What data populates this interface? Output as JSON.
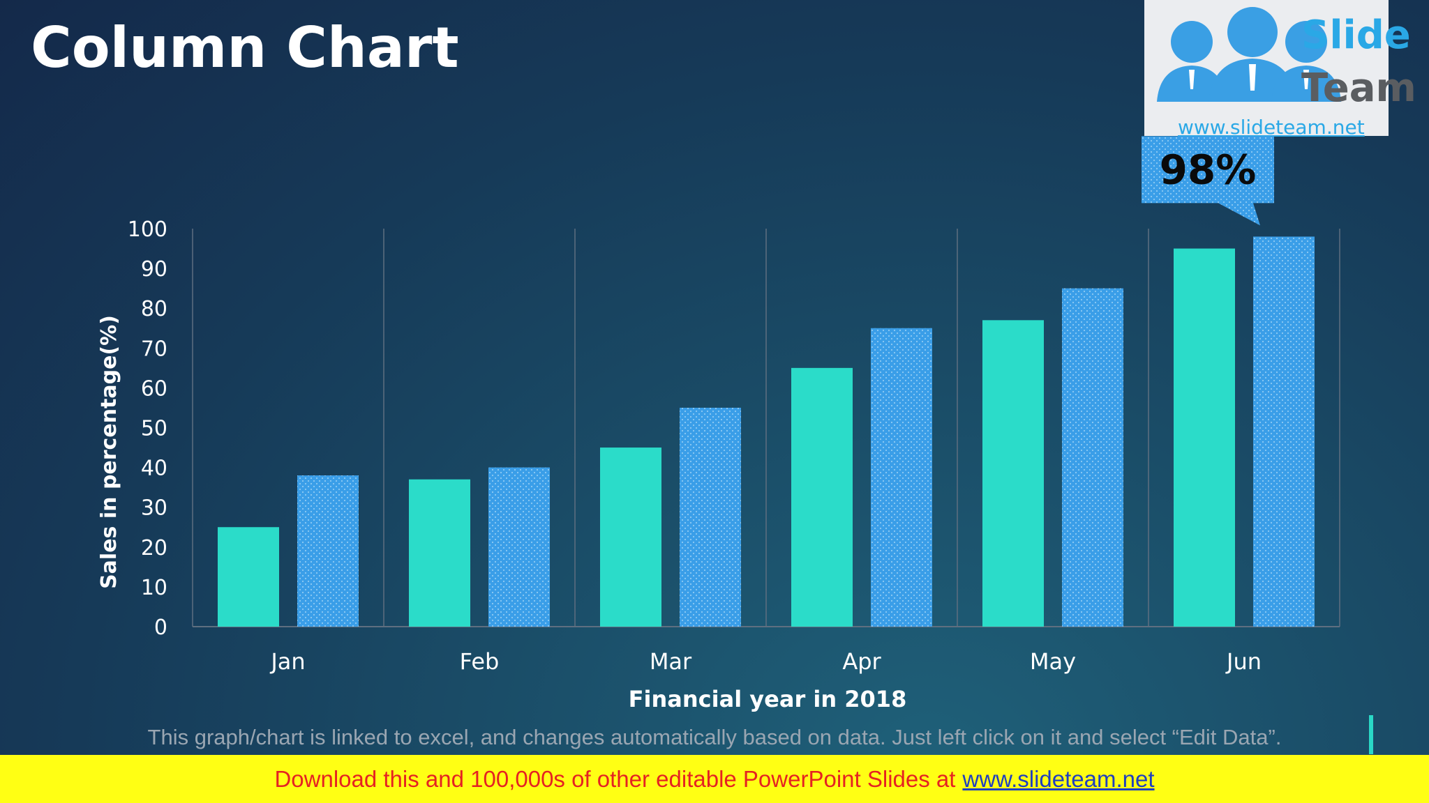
{
  "slide": {
    "title": "Column Chart",
    "note": "This graph/chart is linked to excel, and changes automatically based on data. Just left click on it and select “Edit Data”."
  },
  "logo": {
    "word1": "Slide",
    "word2": "Team",
    "url": "www.slideteam.net"
  },
  "footer": {
    "text": "Download this and 100,000s of other editable PowerPoint Slides at",
    "link": "www.slideteam.net"
  },
  "callout": {
    "text": "98%"
  },
  "colors": {
    "series1": "#2bdcc9",
    "series2": "#3a9ee8",
    "grid": "#5f6f80",
    "footer_bg": "#ffff14",
    "footer_text": "#e52222"
  },
  "chart_data": {
    "type": "bar",
    "categories": [
      "Jan",
      "Feb",
      "Mar",
      "Apr",
      "May",
      "Jun"
    ],
    "series": [
      {
        "values": [
          25,
          37,
          45,
          65,
          77,
          95
        ]
      },
      {
        "values": [
          38,
          40,
          55,
          75,
          85,
          98
        ]
      }
    ],
    "yticks": [
      "0",
      "10",
      "20",
      "30",
      "40",
      "50",
      "60",
      "70",
      "80",
      "90",
      "100"
    ],
    "ylim": [
      0,
      100
    ],
    "xlabel": "Financial year in 2018",
    "ylabel": "Sales in percentage(%)",
    "grid": "vertical separators between categories"
  }
}
